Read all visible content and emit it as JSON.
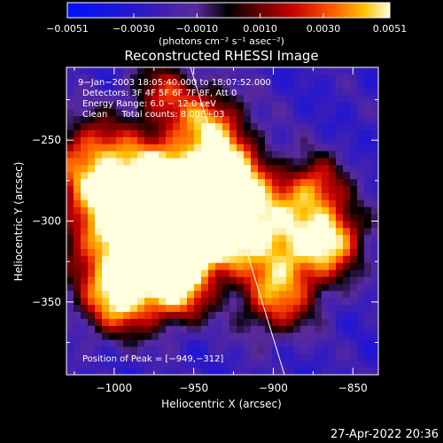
{
  "chart_data": {
    "type": "heatmap",
    "title": "Reconstructed RHESSI Image",
    "xlabel": "Heliocentric X (arcsec)",
    "ylabel": "Heliocentric Y (arcsec)",
    "xlim": [
      -1030,
      -834
    ],
    "ylim": [
      -395,
      -205
    ],
    "x_ticks": [
      -1000,
      -950,
      -900,
      -850
    ],
    "y_ticks": [
      -250,
      -300,
      -350
    ],
    "x_tick_labels": [
      "−1000",
      "−950",
      "−900",
      "−850"
    ],
    "y_tick_labels": [
      "−250",
      "−300",
      "−350"
    ],
    "colorbar": {
      "min": -0.0051,
      "max": 0.0051,
      "ticks": [
        -0.0051,
        -0.003,
        -0.001,
        0.001,
        0.003,
        0.0051
      ],
      "tick_labels": [
        "−0.0051",
        "−0.0030",
        "−0.0010",
        "0.0010",
        "0.0030",
        "0.0051"
      ],
      "unit_label": "(photons cm⁻² s⁻¹ asec⁻²)"
    },
    "annotations": [
      "9−Jan−2003 18:05:40.000 to 18:07:52.000",
      "Detectors: 3F 4F 5F 6F 7F 8F, Att 0",
      "Energy Range: 6.0 − 12.0 keV",
      "Clean     Total counts: 8.00E+03"
    ],
    "peak_label": "Position of Peak = [−949,−312]",
    "peak": [
      -949,
      -312
    ],
    "limb_line": [
      [
        -952,
        -205
      ],
      [
        -893,
        -395
      ]
    ],
    "blobs": [
      {
        "x": -949,
        "y": -312,
        "amp": 0.0051,
        "r": 18
      },
      {
        "x": -955,
        "y": -290,
        "amp": 0.0042,
        "r": 22
      },
      {
        "x": -975,
        "y": -275,
        "amp": 0.0032,
        "r": 20
      },
      {
        "x": -1005,
        "y": -300,
        "amp": 0.0034,
        "r": 22
      },
      {
        "x": -1015,
        "y": -260,
        "amp": 0.0028,
        "r": 18
      },
      {
        "x": -985,
        "y": -330,
        "amp": 0.003,
        "r": 20
      },
      {
        "x": -940,
        "y": -240,
        "amp": 0.003,
        "r": 16
      },
      {
        "x": -925,
        "y": -270,
        "amp": 0.0028,
        "r": 16
      },
      {
        "x": -915,
        "y": -300,
        "amp": 0.0031,
        "r": 18
      },
      {
        "x": -885,
        "y": -320,
        "amp": 0.003,
        "r": 20
      },
      {
        "x": -875,
        "y": -280,
        "amp": 0.0029,
        "r": 14
      },
      {
        "x": -860,
        "y": -310,
        "amp": 0.0024,
        "r": 14
      },
      {
        "x": -1000,
        "y": -350,
        "amp": 0.0023,
        "r": 16
      },
      {
        "x": -960,
        "y": -345,
        "amp": 0.0022,
        "r": 14
      },
      {
        "x": -900,
        "y": -350,
        "amp": 0.002,
        "r": 16
      },
      {
        "x": -970,
        "y": -220,
        "amp": 0.0015,
        "r": 14
      }
    ]
  },
  "timestamp": "27-Apr-2022 20:36"
}
